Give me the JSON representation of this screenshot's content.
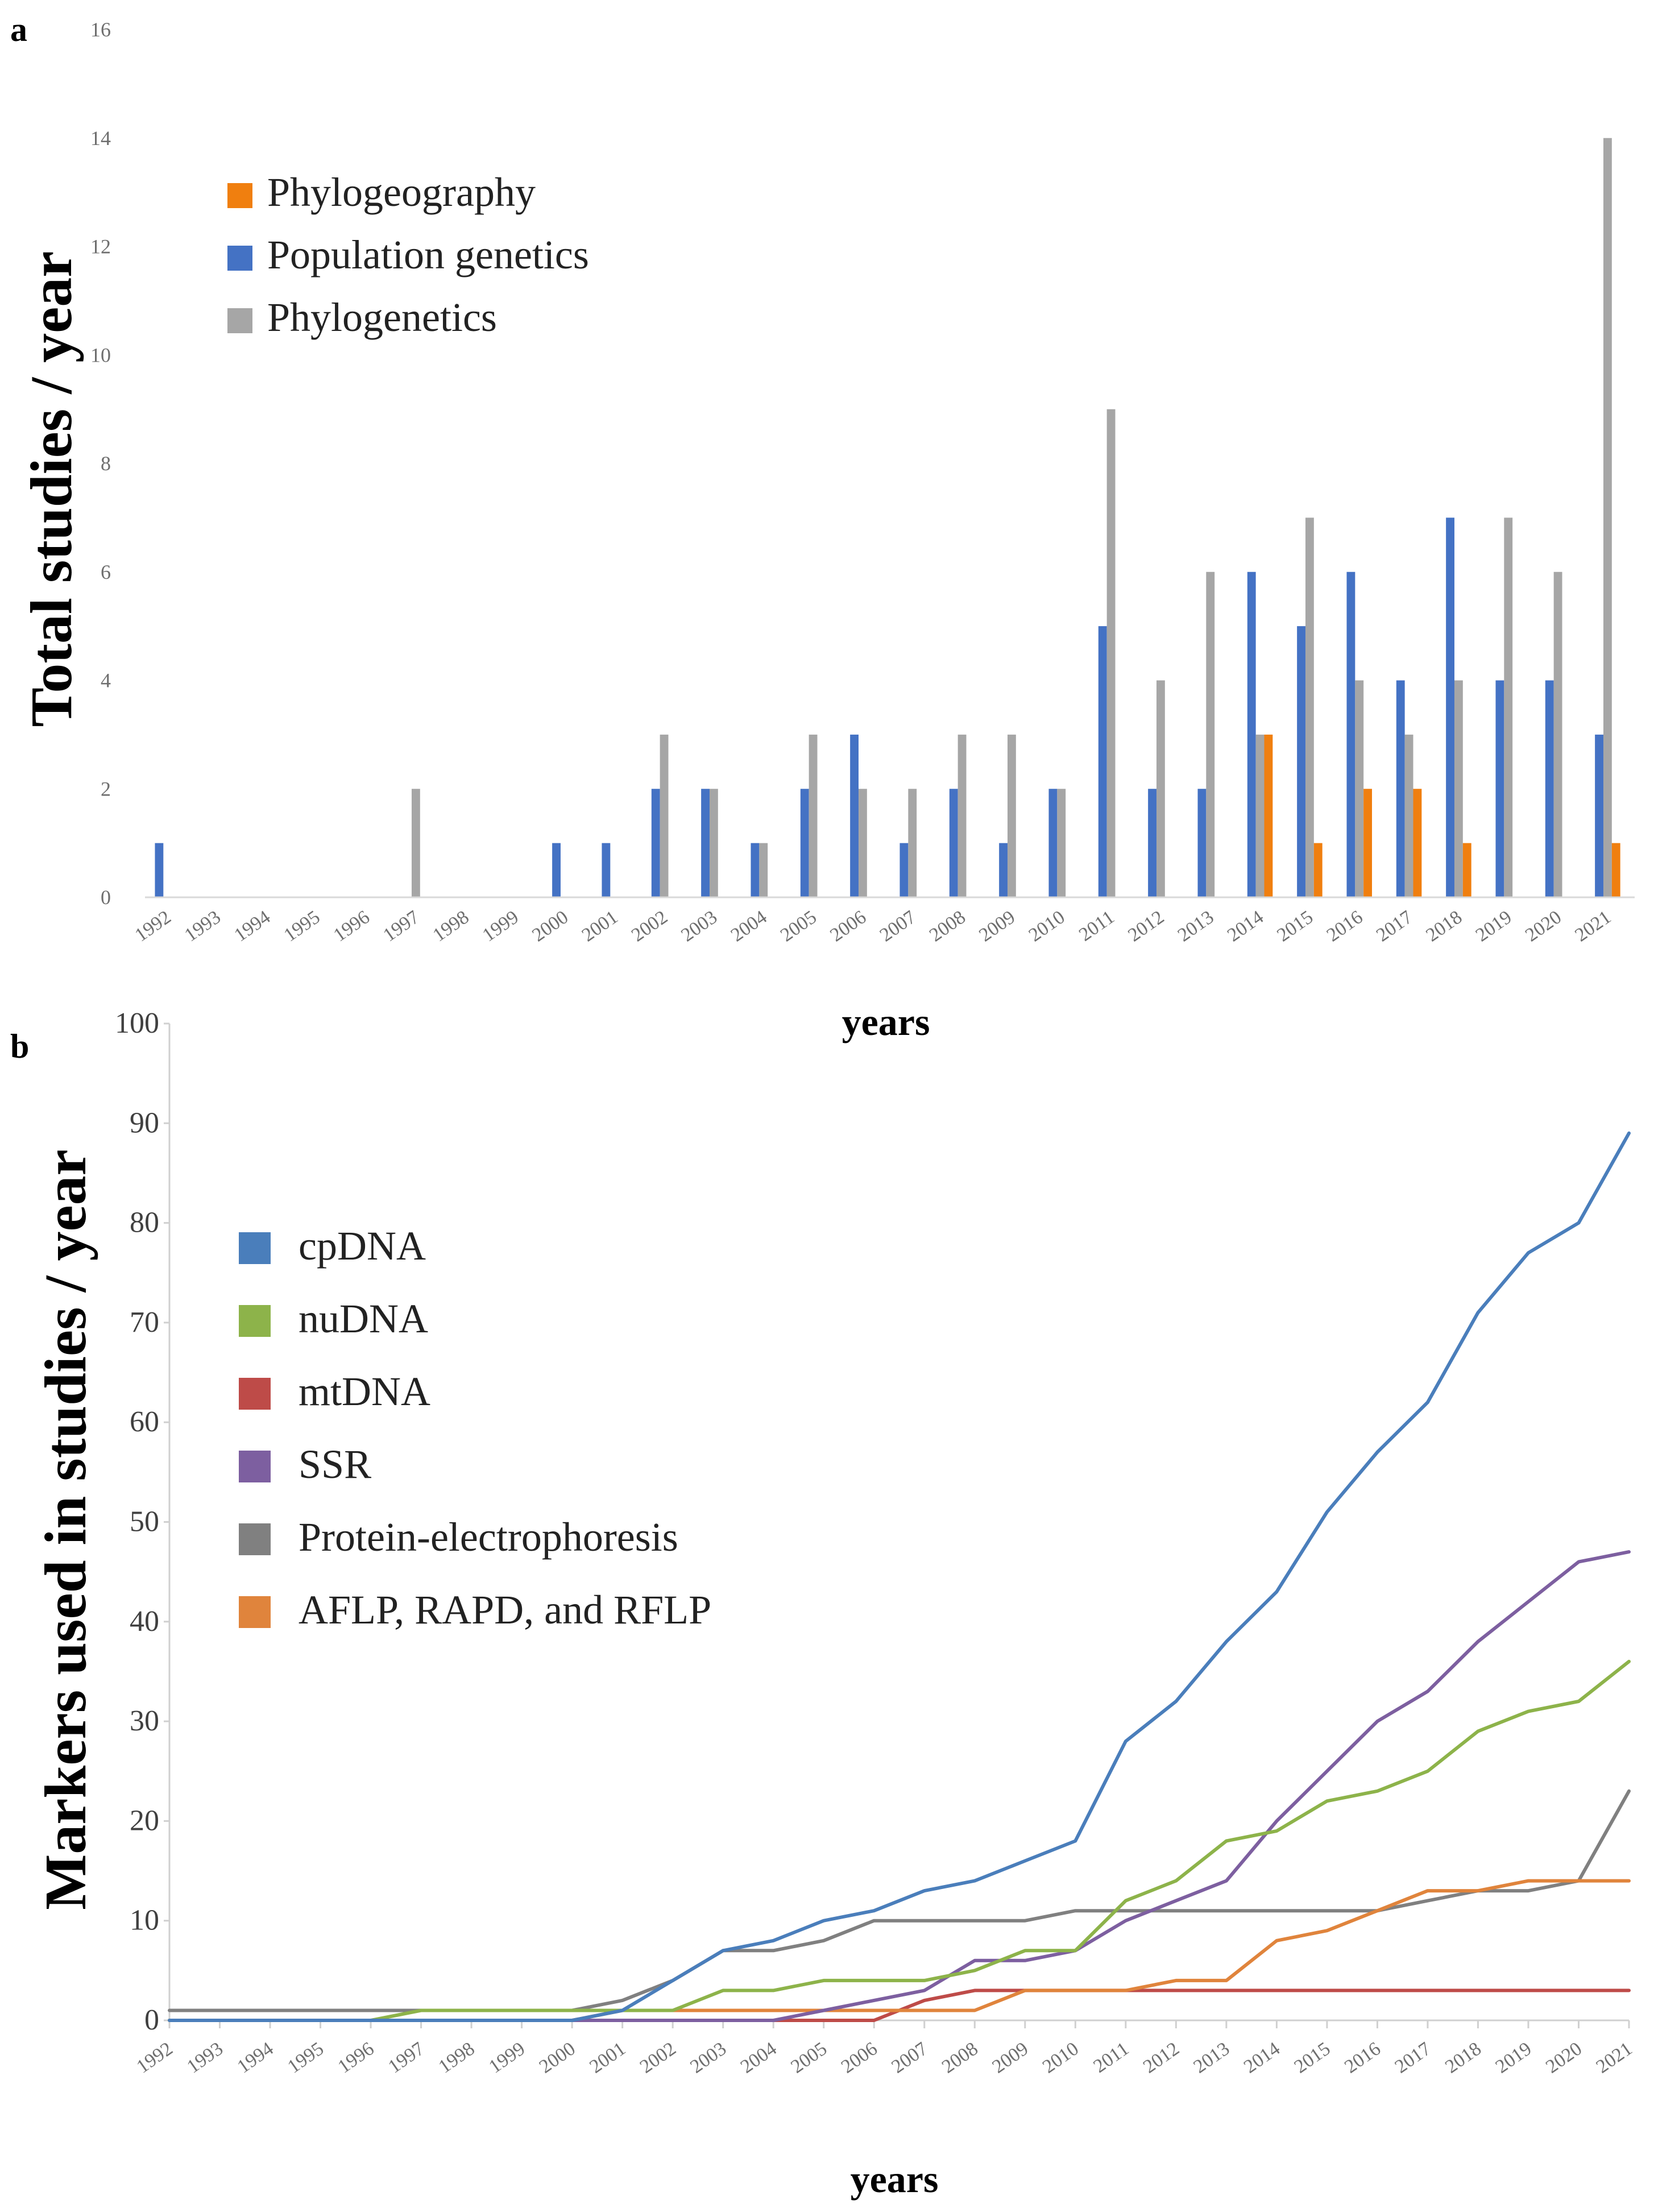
{
  "chart_data": [
    {
      "panel": "a",
      "type": "bar",
      "xlabel": "years",
      "ylabel": "Total studies / year",
      "ylim": [
        0,
        16
      ],
      "yticks": [
        0,
        2,
        4,
        6,
        8,
        10,
        12,
        14,
        16
      ],
      "categories": [
        "1992",
        "1993",
        "1994",
        "1995",
        "1996",
        "1997",
        "1998",
        "1999",
        "2000",
        "2001",
        "2002",
        "2003",
        "2004",
        "2005",
        "2006",
        "2007",
        "2008",
        "2009",
        "2010",
        "2011",
        "2012",
        "2013",
        "2014",
        "2015",
        "2016",
        "2017",
        "2018",
        "2019",
        "2020",
        "2021"
      ],
      "legend_position": "top-left",
      "series": [
        {
          "name": "Phylogeography",
          "color": "#f07f0f",
          "values": [
            0,
            0,
            0,
            0,
            0,
            0,
            0,
            0,
            0,
            0,
            0,
            0,
            0,
            0,
            0,
            0,
            0,
            0,
            0,
            0,
            0,
            0,
            3,
            1,
            2,
            2,
            1,
            0,
            0,
            1
          ]
        },
        {
          "name": "Population genetics",
          "color": "#4472c4",
          "values": [
            1,
            0,
            0,
            0,
            0,
            0,
            0,
            0,
            1,
            1,
            2,
            2,
            1,
            2,
            3,
            1,
            2,
            1,
            2,
            5,
            2,
            2,
            6,
            5,
            6,
            4,
            7,
            4,
            4,
            3
          ]
        },
        {
          "name": "Phylogenetics",
          "color": "#a6a6a6",
          "values": [
            0,
            0,
            0,
            0,
            0,
            2,
            0,
            0,
            0,
            0,
            3,
            2,
            1,
            3,
            2,
            2,
            3,
            3,
            2,
            9,
            4,
            6,
            3,
            7,
            4,
            3,
            4,
            7,
            6,
            14
          ]
        }
      ],
      "legend_order": [
        "Phylogeography",
        "Population genetics",
        "Phylogenetics"
      ],
      "draw_order": [
        "Population genetics",
        "Phylogenetics",
        "Phylogeography"
      ]
    },
    {
      "panel": "b",
      "type": "line",
      "xlabel": "years",
      "ylabel": "Markers used in studies / year",
      "ylim": [
        0,
        100
      ],
      "yticks": [
        0,
        10,
        20,
        30,
        40,
        50,
        60,
        70,
        80,
        90,
        100
      ],
      "x": [
        "1992",
        "1993",
        "1994",
        "1995",
        "1996",
        "1997",
        "1998",
        "1999",
        "2000",
        "2001",
        "2002",
        "2003",
        "2004",
        "2005",
        "2006",
        "2007",
        "2008",
        "2009",
        "2010",
        "2011",
        "2012",
        "2013",
        "2014",
        "2015",
        "2016",
        "2017",
        "2018",
        "2019",
        "2020",
        "2021"
      ],
      "legend_position": "left",
      "series": [
        {
          "name": "cpDNA",
          "color": "#4a7ebb",
          "values": [
            0,
            0,
            0,
            0,
            0,
            0,
            0,
            0,
            0,
            1,
            4,
            7,
            8,
            10,
            11,
            13,
            14,
            16,
            18,
            28,
            32,
            38,
            43,
            51,
            57,
            62,
            71,
            77,
            80,
            89
          ]
        },
        {
          "name": "nuDNA",
          "color": "#8db34a",
          "values": [
            0,
            0,
            0,
            0,
            0,
            1,
            1,
            1,
            1,
            1,
            1,
            3,
            3,
            4,
            4,
            4,
            5,
            7,
            7,
            12,
            14,
            18,
            19,
            22,
            23,
            25,
            29,
            31,
            32,
            36
          ]
        },
        {
          "name": "mtDNA",
          "color": "#be4b48",
          "values": [
            0,
            0,
            0,
            0,
            0,
            0,
            0,
            0,
            0,
            0,
            0,
            0,
            0,
            0,
            0,
            2,
            3,
            3,
            3,
            3,
            3,
            3,
            3,
            3,
            3,
            3,
            3,
            3,
            3,
            3
          ]
        },
        {
          "name": "SSR",
          "color": "#7d5fa0",
          "values": [
            0,
            0,
            0,
            0,
            0,
            0,
            0,
            0,
            0,
            0,
            0,
            0,
            0,
            1,
            2,
            3,
            6,
            6,
            7,
            10,
            12,
            14,
            20,
            25,
            30,
            33,
            38,
            42,
            46,
            47
          ]
        },
        {
          "name": "Protein-electrophoresis",
          "color": "#808080",
          "values": [
            1,
            1,
            1,
            1,
            1,
            1,
            1,
            1,
            1,
            2,
            4,
            7,
            7,
            8,
            10,
            10,
            10,
            10,
            11,
            11,
            11,
            11,
            11,
            11,
            11,
            12,
            13,
            13,
            14,
            23
          ]
        },
        {
          "name": "AFLP, RAPD, and RFLP",
          "color": "#e0843c",
          "values": [
            0,
            0,
            0,
            0,
            0,
            0,
            0,
            0,
            0,
            1,
            1,
            1,
            1,
            1,
            1,
            1,
            1,
            3,
            3,
            3,
            4,
            4,
            8,
            9,
            11,
            13,
            13,
            14,
            14,
            14
          ]
        }
      ],
      "draw_order": [
        "Protein-electrophoresis",
        "mtDNA",
        "AFLP, RAPD, and RFLP",
        "SSR",
        "nuDNA",
        "cpDNA"
      ]
    }
  ]
}
